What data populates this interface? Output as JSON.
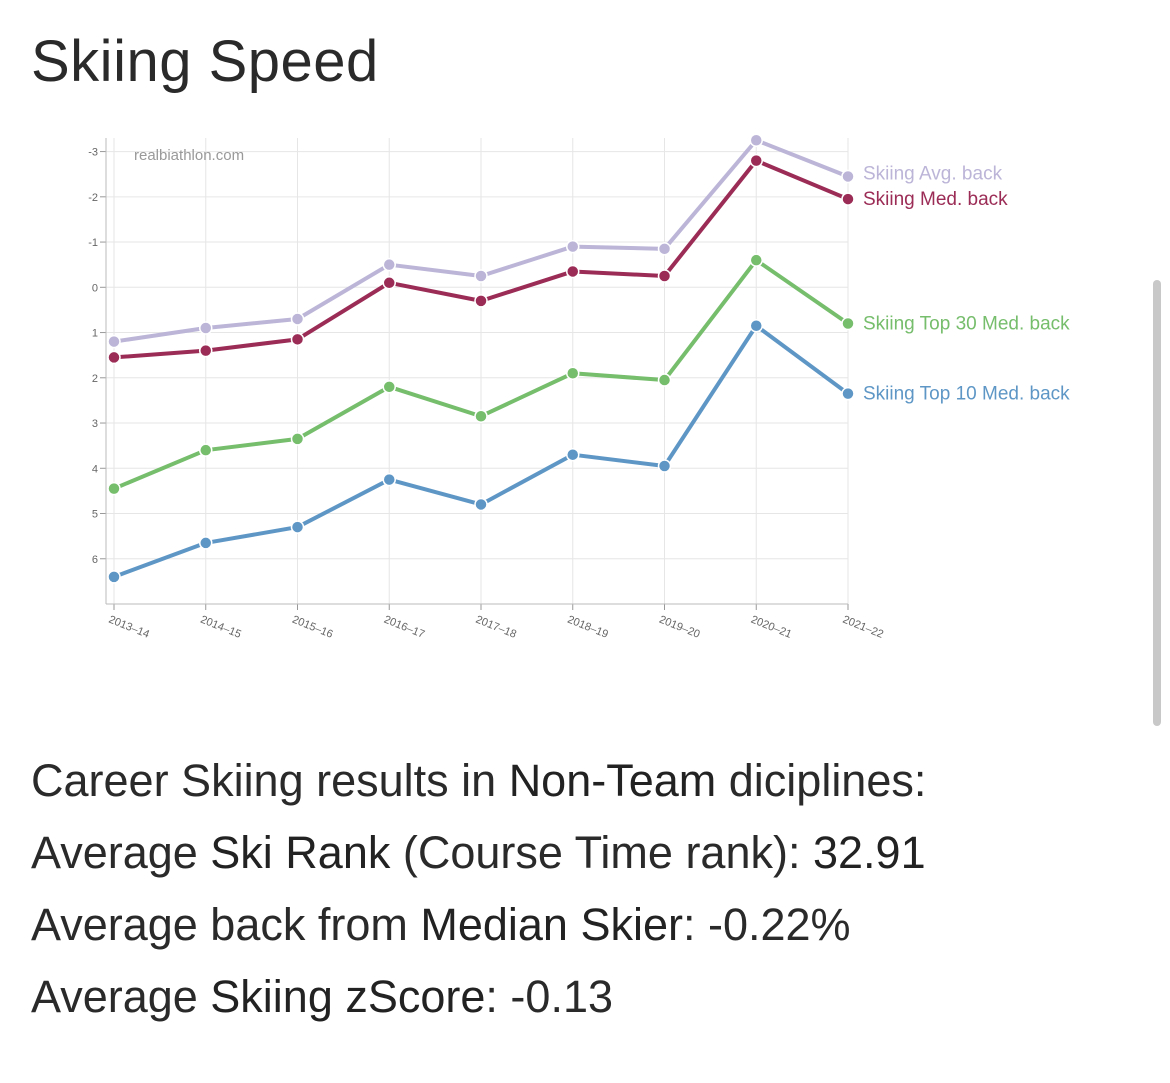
{
  "title": "Skiing Speed",
  "chart_data": {
    "type": "line",
    "watermark": "realbiathlon.com",
    "categories": [
      "2013–14",
      "2014–15",
      "2015–16",
      "2016–17",
      "2017–18",
      "2018–19",
      "2019–20",
      "2020–21",
      "2021–22"
    ],
    "y_reversed": true,
    "ylim": [
      -3.3,
      7
    ],
    "y_ticks": [
      -3,
      -2,
      -1,
      0,
      1,
      2,
      3,
      4,
      5,
      6
    ],
    "grid": true,
    "legend_placement": "right, at line ends",
    "series": [
      {
        "name": "Skiing Avg. back",
        "color": "#bcb5d8",
        "values": [
          1.2,
          0.9,
          0.7,
          -0.5,
          -0.25,
          -0.9,
          -0.85,
          -3.25,
          -2.45
        ]
      },
      {
        "name": "Skiing Med. back",
        "color": "#9b2c55",
        "values": [
          1.55,
          1.4,
          1.15,
          -0.1,
          0.3,
          -0.35,
          -0.25,
          -2.8,
          -1.95
        ]
      },
      {
        "name": "Skiing Top 30 Med. back",
        "color": "#76bd6c",
        "values": [
          4.45,
          3.6,
          3.35,
          2.2,
          2.85,
          1.9,
          2.05,
          -0.6,
          0.8
        ]
      },
      {
        "name": "Skiing Top 10 Med. back",
        "color": "#5e97c6",
        "values": [
          6.4,
          5.65,
          5.3,
          4.25,
          4.8,
          3.7,
          3.95,
          0.85,
          2.35
        ]
      }
    ]
  },
  "stats": {
    "l1_a": "Career Skiing results in ",
    "l1_b": "Non-Team",
    "l1_c": " diciplines:",
    "l2_a": "Average ",
    "l2_b": "Ski Rank",
    "l2_c": " (Course Time rank): ",
    "l2_d": "32.91",
    "l3_a": "Average back from ",
    "l3_b": "Median Skier",
    "l3_c": ": -0.22%",
    "l4_a": "Average ",
    "l4_b": "Skiing zScore",
    "l4_c": ": -0.13"
  }
}
